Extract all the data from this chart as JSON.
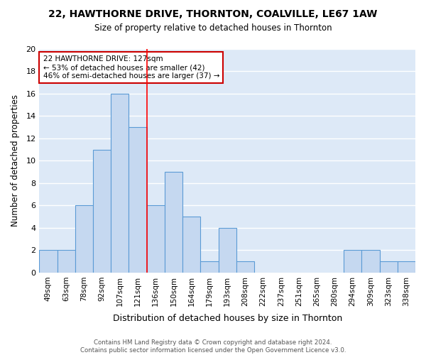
{
  "title": "22, HAWTHORNE DRIVE, THORNTON, COALVILLE, LE67 1AW",
  "subtitle": "Size of property relative to detached houses in Thornton",
  "xlabel": "Distribution of detached houses by size in Thornton",
  "ylabel": "Number of detached properties",
  "categories": [
    "49sqm",
    "63sqm",
    "78sqm",
    "92sqm",
    "107sqm",
    "121sqm",
    "136sqm",
    "150sqm",
    "164sqm",
    "179sqm",
    "193sqm",
    "208sqm",
    "222sqm",
    "237sqm",
    "251sqm",
    "265sqm",
    "280sqm",
    "294sqm",
    "309sqm",
    "323sqm",
    "338sqm"
  ],
  "values": [
    2,
    2,
    6,
    11,
    16,
    13,
    6,
    9,
    5,
    1,
    4,
    1,
    0,
    0,
    0,
    0,
    0,
    2,
    2,
    1,
    1
  ],
  "bar_color": "#c5d8f0",
  "bar_edge_color": "#5b9bd5",
  "background_color": "#dde9f7",
  "grid_color": "#ffffff",
  "red_line_x": 5.5,
  "annotation_text": "22 HAWTHORNE DRIVE: 127sqm\n← 53% of detached houses are smaller (42)\n46% of semi-detached houses are larger (37) →",
  "annotation_box_color": "#ffffff",
  "annotation_box_edge_color": "#cc0000",
  "footer_line1": "Contains HM Land Registry data © Crown copyright and database right 2024.",
  "footer_line2": "Contains public sector information licensed under the Open Government Licence v3.0.",
  "ylim": [
    0,
    20
  ],
  "yticks": [
    0,
    2,
    4,
    6,
    8,
    10,
    12,
    14,
    16,
    18,
    20
  ]
}
